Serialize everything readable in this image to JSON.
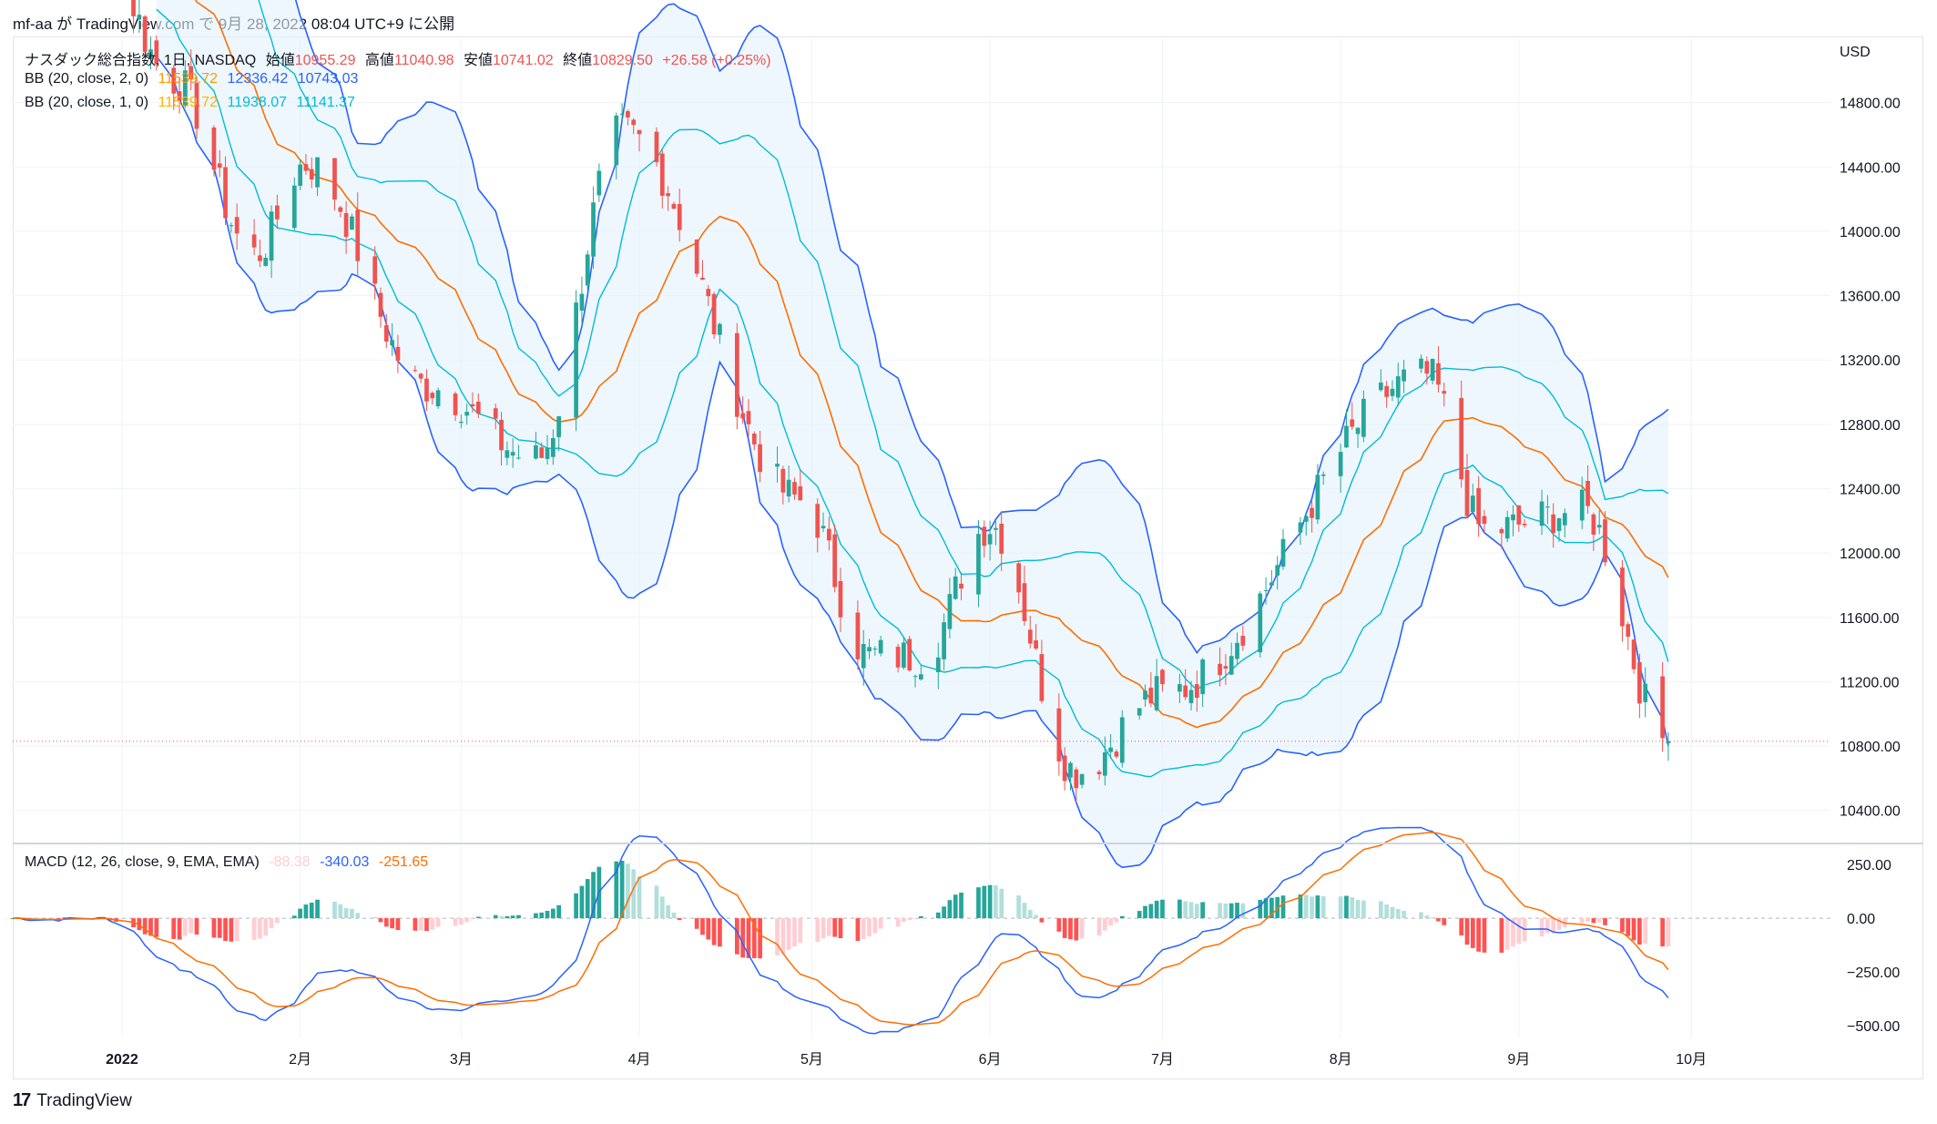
{
  "header": {
    "text": "mf-aa が TradingView.com で 9月 28, 2022 08:04 UTC+9 に公開"
  },
  "legend": {
    "title": "ナスダック総合指数, 1日, NASDAQ",
    "open_label": "始値",
    "open": "10955.29",
    "high_label": "高値",
    "high": "11040.98",
    "low_label": "安値",
    "low": "10741.02",
    "close_label": "終値",
    "close": "10829.50",
    "change": "+26.58 (+0.25%)",
    "bb2_label": "BB (20, close, 2, 0)",
    "bb2_basis": "11539.72",
    "bb2_upper": "12336.42",
    "bb2_lower": "10743.03",
    "bb1_label": "BB (20, close, 1, 0)",
    "bb1_basis": "11539.72",
    "bb1_upper": "11938.07",
    "bb1_lower": "11141.37",
    "macd_label": "MACD (12, 26, close, 9, EMA, EMA)",
    "macd_hist": "-88.38",
    "macd_line": "-340.03",
    "macd_signal": "-251.65"
  },
  "footer": {
    "brand": "TradingView"
  },
  "colors": {
    "up": "#26a69a",
    "down": "#ef5350",
    "bb_outer": "#2962ff",
    "bb_inner": "#00bcd4",
    "basis": "#ff6d00",
    "band_fill": "#e3f2fd",
    "macd": "#2962ff",
    "signal": "#ff6d00",
    "hist_up_strong": "#26a69a",
    "hist_up_weak": "#b2dfdb",
    "hist_dn_strong": "#ff5252",
    "hist_dn_weak": "#ffcdd2"
  },
  "chart_data": [
    {
      "type": "candlestick",
      "title": "ナスダック総合指数, 1日, NASDAQ",
      "currency": "USD",
      "ylim": [
        10200,
        15200
      ],
      "y_ticks": [
        10400,
        10800,
        11200,
        11600,
        12000,
        12400,
        12800,
        13200,
        13600,
        14000,
        14400,
        14800
      ],
      "y_tick_labels": [
        "10400.00",
        "10800.00",
        "11200.00",
        "11600.00",
        "12000.00",
        "12400.00",
        "12800.00",
        "13200.00",
        "13600.00",
        "14000.00",
        "14400.00",
        "14800.00"
      ],
      "x_range": [
        "2021-12-13",
        "2022-10-26"
      ],
      "x_ticks": [
        "2022-01-01",
        "2022-02-01",
        "2022-03-01",
        "2022-04-01",
        "2022-05-01",
        "2022-06-01",
        "2022-07-01",
        "2022-08-01",
        "2022-09-01",
        "2022-10-01"
      ],
      "x_tick_labels": [
        "2022",
        "2月",
        "3月",
        "4月",
        "5月",
        "6月",
        "7月",
        "8月",
        "9月",
        "10月"
      ],
      "last_price": 10829.5,
      "key_closes": [
        {
          "date": "2021-12-27",
          "close": 15870
        },
        {
          "date": "2022-01-10",
          "close": 14940
        },
        {
          "date": "2022-01-24",
          "close": 13855
        },
        {
          "date": "2022-02-02",
          "close": 14420
        },
        {
          "date": "2022-02-23",
          "close": 13037
        },
        {
          "date": "2022-03-14",
          "close": 12581
        },
        {
          "date": "2022-03-29",
          "close": 14620
        },
        {
          "date": "2022-04-29",
          "close": 12335
        },
        {
          "date": "2022-05-11",
          "close": 11364
        },
        {
          "date": "2022-05-20",
          "close": 11355
        },
        {
          "date": "2022-06-01",
          "close": 12175
        },
        {
          "date": "2022-06-16",
          "close": 10646
        },
        {
          "date": "2022-07-01",
          "close": 11128
        },
        {
          "date": "2022-08-16",
          "close": 13103
        },
        {
          "date": "2022-08-26",
          "close": 12142
        },
        {
          "date": "2022-09-12",
          "close": 12266
        },
        {
          "date": "2022-09-27",
          "close": 10829.5
        }
      ],
      "bb_last": {
        "basis": 11539.72,
        "upper2": 12336.42,
        "lower2": 10743.03,
        "upper1": 11938.07,
        "lower1": 11141.37
      }
    },
    {
      "type": "line",
      "title": "MACD (12, 26, close, 9, EMA, EMA)",
      "ylim": [
        -560,
        340
      ],
      "y_ticks": [
        250,
        0,
        -250,
        -500
      ],
      "y_tick_labels": [
        "250.00",
        "0.00",
        "−250.00",
        "−500.00"
      ],
      "series": [
        {
          "name": "MACD",
          "key_values": [
            {
              "date": "2021-12-20",
              "value": -60
            },
            {
              "date": "2022-01-03",
              "value": 30
            },
            {
              "date": "2022-01-27",
              "value": -510
            },
            {
              "date": "2022-03-14",
              "value": -300
            },
            {
              "date": "2022-03-30",
              "value": 210
            },
            {
              "date": "2022-05-12",
              "value": -520
            },
            {
              "date": "2022-05-23",
              "value": -490
            },
            {
              "date": "2022-06-06",
              "value": -110
            },
            {
              "date": "2022-06-22",
              "value": -350
            },
            {
              "date": "2022-08-16",
              "value": 360
            },
            {
              "date": "2022-09-27",
              "value": -340.03
            }
          ]
        },
        {
          "name": "Signal",
          "key_values": [
            {
              "date": "2022-01-30",
              "value": -400
            },
            {
              "date": "2022-04-04",
              "value": 140
            },
            {
              "date": "2022-05-25",
              "value": -470
            },
            {
              "date": "2022-08-20",
              "value": 320
            },
            {
              "date": "2022-09-27",
              "value": -251.65
            }
          ]
        },
        {
          "name": "Histogram",
          "last": -88.38
        }
      ]
    }
  ]
}
